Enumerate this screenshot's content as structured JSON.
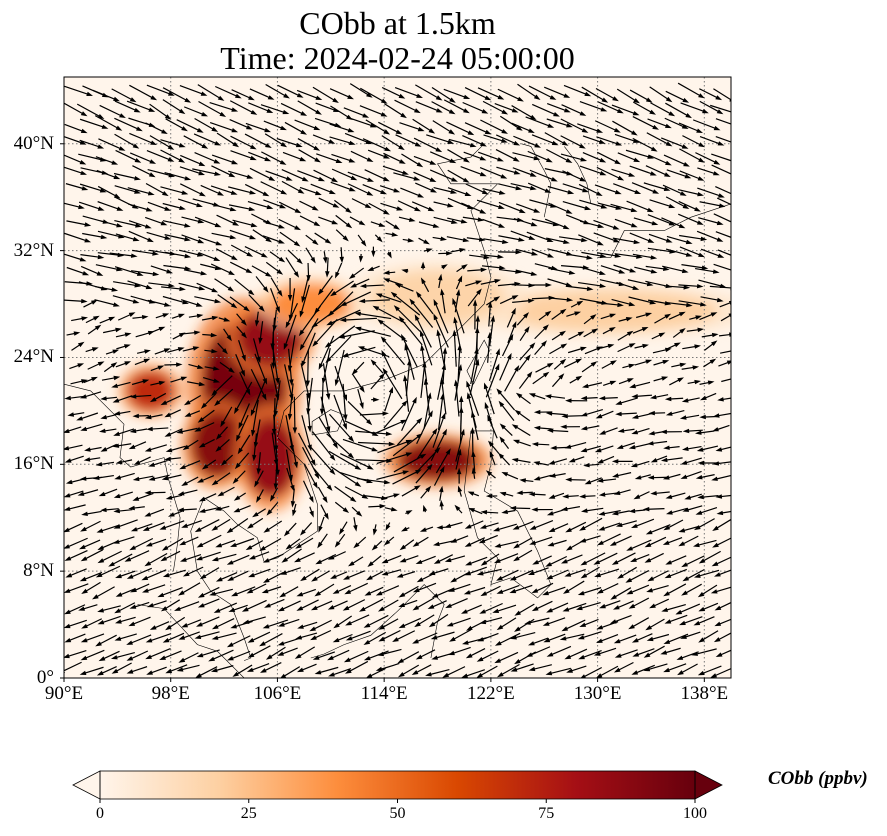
{
  "title_line1": "CObb at 1.5km",
  "title_line2": "Time: 2024-02-24 05:00:00",
  "map": {
    "lon_range": [
      90,
      140
    ],
    "lat_range": [
      0,
      45
    ],
    "lon_ticks": [
      {
        "value": 90,
        "label": "90°E"
      },
      {
        "value": 98,
        "label": "98°E"
      },
      {
        "value": 106,
        "label": "106°E"
      },
      {
        "value": 114,
        "label": "114°E"
      },
      {
        "value": 122,
        "label": "122°E"
      },
      {
        "value": 130,
        "label": "130°E"
      },
      {
        "value": 138,
        "label": "138°E"
      }
    ],
    "lat_ticks": [
      {
        "value": 0,
        "label": "0°"
      },
      {
        "value": 8,
        "label": "8°N"
      },
      {
        "value": 16,
        "label": "16°N"
      },
      {
        "value": 24,
        "label": "24°N"
      },
      {
        "value": 32,
        "label": "32°N"
      },
      {
        "value": 40,
        "label": "40°N"
      }
    ],
    "gridlines": true,
    "plumes": [
      {
        "lon": 103.5,
        "lat": 22.0,
        "rlon": 3.2,
        "rlat": 4.8,
        "value": 95
      },
      {
        "lon": 105.5,
        "lat": 25.5,
        "rlon": 2.5,
        "rlat": 2.2,
        "value": 85
      },
      {
        "lon": 101.5,
        "lat": 17.5,
        "rlon": 2.0,
        "rlat": 2.5,
        "value": 90
      },
      {
        "lon": 105.5,
        "lat": 16.5,
        "rlon": 2.0,
        "rlat": 3.0,
        "value": 85
      },
      {
        "lon": 96.5,
        "lat": 21.5,
        "rlon": 1.8,
        "rlat": 1.5,
        "value": 70
      },
      {
        "lon": 118.0,
        "lat": 16.3,
        "rlon": 3.0,
        "rlat": 1.5,
        "value": 90
      },
      {
        "lon": 108.5,
        "lat": 28.0,
        "rlon": 3.0,
        "rlat": 1.5,
        "value": 40
      },
      {
        "lon": 131.0,
        "lat": 27.5,
        "rlon": 8.0,
        "rlat": 1.5,
        "value": 20
      },
      {
        "lon": 118.0,
        "lat": 28.5,
        "rlon": 5.0,
        "rlat": 2.0,
        "value": 18
      }
    ]
  },
  "colorbar": {
    "min": 0,
    "max": 100,
    "ticks": [
      0,
      25,
      50,
      75,
      100
    ],
    "label": "CObb (ppbv)",
    "colors": [
      "#fff5eb",
      "#fdd0a2",
      "#fd8d3c",
      "#d94801",
      "#a50f15",
      "#67000d"
    ]
  }
}
